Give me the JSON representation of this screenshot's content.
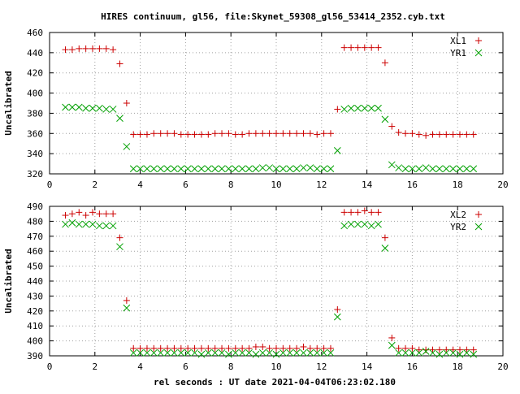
{
  "chart_data": [
    {
      "type": "scatter",
      "title": "HIRES continuum, gl56, file:Skynet_59308_gl56_53414_2352.cyb.txt",
      "xlabel": "",
      "ylabel": "Uncalibrated",
      "xlim": [
        0,
        20
      ],
      "ylim": [
        320,
        460
      ],
      "xticks": [
        0,
        2,
        4,
        6,
        8,
        10,
        12,
        14,
        16,
        18,
        20
      ],
      "yticks": [
        320,
        340,
        360,
        380,
        400,
        420,
        440,
        460
      ],
      "grid": true,
      "legend": "top-right",
      "series": [
        {
          "name": "XL1",
          "marker": "plus",
          "color": "#cc0000",
          "x": [
            0.7,
            1.0,
            1.3,
            1.6,
            1.9,
            2.2,
            2.5,
            2.8,
            3.1,
            3.4,
            3.7,
            4.0,
            4.3,
            4.6,
            4.9,
            5.2,
            5.5,
            5.8,
            6.1,
            6.4,
            6.7,
            7.0,
            7.3,
            7.6,
            7.9,
            8.2,
            8.5,
            8.8,
            9.1,
            9.4,
            9.7,
            10.0,
            10.3,
            10.6,
            10.9,
            11.2,
            11.5,
            11.8,
            12.1,
            12.4,
            12.7,
            13.0,
            13.3,
            13.6,
            13.9,
            14.2,
            14.5,
            14.8,
            15.1,
            15.4,
            15.7,
            16.0,
            16.3,
            16.6,
            16.9,
            17.2,
            17.5,
            17.8,
            18.1,
            18.4,
            18.7
          ],
          "y": [
            443,
            443,
            444,
            444,
            444,
            444,
            444,
            443,
            429,
            390,
            359,
            359,
            359,
            360,
            360,
            360,
            360,
            359,
            359,
            359,
            359,
            359,
            360,
            360,
            360,
            359,
            359,
            360,
            360,
            360,
            360,
            360,
            360,
            360,
            360,
            360,
            360,
            359,
            360,
            360,
            384,
            445,
            445,
            445,
            445,
            445,
            445,
            430,
            367,
            361,
            360,
            360,
            359,
            358,
            359,
            359,
            359,
            359,
            359,
            359,
            359
          ]
        },
        {
          "name": "YR1",
          "marker": "cross",
          "color": "#00a000",
          "x": [
            0.7,
            1.0,
            1.3,
            1.6,
            1.9,
            2.2,
            2.5,
            2.8,
            3.1,
            3.4,
            3.7,
            4.0,
            4.3,
            4.6,
            4.9,
            5.2,
            5.5,
            5.8,
            6.1,
            6.4,
            6.7,
            7.0,
            7.3,
            7.6,
            7.9,
            8.2,
            8.5,
            8.8,
            9.1,
            9.4,
            9.7,
            10.0,
            10.3,
            10.6,
            10.9,
            11.2,
            11.5,
            11.8,
            12.1,
            12.4,
            12.7,
            13.0,
            13.3,
            13.6,
            13.9,
            14.2,
            14.5,
            14.8,
            15.1,
            15.4,
            15.7,
            16.0,
            16.3,
            16.6,
            16.9,
            17.2,
            17.5,
            17.8,
            18.1,
            18.4,
            18.7
          ],
          "y": [
            386,
            386,
            386,
            385,
            385,
            385,
            384,
            384,
            375,
            347,
            325,
            325,
            325,
            325,
            325,
            325,
            325,
            325,
            325,
            325,
            325,
            325,
            325,
            325,
            325,
            325,
            325,
            325,
            325,
            326,
            326,
            325,
            325,
            325,
            325,
            326,
            326,
            325,
            325,
            325,
            343,
            384,
            385,
            385,
            385,
            385,
            385,
            374,
            329,
            326,
            325,
            325,
            325,
            326,
            325,
            325,
            325,
            325,
            325,
            325,
            325
          ]
        }
      ]
    },
    {
      "type": "scatter",
      "title": "",
      "xlabel": "rel seconds : UT date 2021-04-04T06:23:02.180",
      "ylabel": "Uncalibrated",
      "xlim": [
        0,
        20
      ],
      "ylim": [
        390,
        490
      ],
      "xticks": [
        0,
        2,
        4,
        6,
        8,
        10,
        12,
        14,
        16,
        18,
        20
      ],
      "yticks": [
        390,
        400,
        410,
        420,
        430,
        440,
        450,
        460,
        470,
        480,
        490
      ],
      "grid": true,
      "legend": "top-right",
      "series": [
        {
          "name": "XL2",
          "marker": "plus",
          "color": "#cc0000",
          "x": [
            0.7,
            1.0,
            1.3,
            1.6,
            1.9,
            2.2,
            2.5,
            2.8,
            3.1,
            3.4,
            3.7,
            4.0,
            4.3,
            4.6,
            4.9,
            5.2,
            5.5,
            5.8,
            6.1,
            6.4,
            6.7,
            7.0,
            7.3,
            7.6,
            7.9,
            8.2,
            8.5,
            8.8,
            9.1,
            9.4,
            9.7,
            10.0,
            10.3,
            10.6,
            10.9,
            11.2,
            11.5,
            11.8,
            12.1,
            12.4,
            12.7,
            13.0,
            13.3,
            13.6,
            13.9,
            14.2,
            14.5,
            14.8,
            15.1,
            15.4,
            15.7,
            16.0,
            16.3,
            16.6,
            16.9,
            17.2,
            17.5,
            17.8,
            18.1,
            18.4,
            18.7
          ],
          "y": [
            484,
            485,
            486,
            484,
            486,
            485,
            485,
            485,
            469,
            427,
            395,
            395,
            395,
            395,
            395,
            395,
            395,
            395,
            395,
            395,
            395,
            395,
            395,
            395,
            395,
            395,
            395,
            395,
            396,
            396,
            395,
            395,
            395,
            395,
            395,
            396,
            395,
            395,
            395,
            395,
            421,
            486,
            486,
            486,
            487,
            486,
            486,
            469,
            402,
            395,
            395,
            395,
            394,
            394,
            394,
            394,
            394,
            394,
            394,
            394,
            394
          ]
        },
        {
          "name": "YR2",
          "marker": "cross",
          "color": "#00a000",
          "x": [
            0.7,
            1.0,
            1.3,
            1.6,
            1.9,
            2.2,
            2.5,
            2.8,
            3.1,
            3.4,
            3.7,
            4.0,
            4.3,
            4.6,
            4.9,
            5.2,
            5.5,
            5.8,
            6.1,
            6.4,
            6.7,
            7.0,
            7.3,
            7.6,
            7.9,
            8.2,
            8.5,
            8.8,
            9.1,
            9.4,
            9.7,
            10.0,
            10.3,
            10.6,
            10.9,
            11.2,
            11.5,
            11.8,
            12.1,
            12.4,
            12.7,
            13.0,
            13.3,
            13.6,
            13.9,
            14.2,
            14.5,
            14.8,
            15.1,
            15.4,
            15.7,
            16.0,
            16.3,
            16.6,
            16.9,
            17.2,
            17.5,
            17.8,
            18.1,
            18.4,
            18.7
          ],
          "y": [
            478,
            479,
            478,
            478,
            478,
            477,
            477,
            477,
            463,
            422,
            392,
            392,
            392,
            392,
            392,
            392,
            392,
            392,
            392,
            392,
            391,
            392,
            392,
            392,
            391,
            392,
            392,
            392,
            391,
            392,
            392,
            391,
            392,
            392,
            392,
            392,
            392,
            392,
            392,
            392,
            416,
            477,
            478,
            478,
            478,
            477,
            478,
            462,
            397,
            392,
            392,
            392,
            392,
            393,
            392,
            391,
            392,
            392,
            391,
            392,
            391
          ]
        }
      ]
    }
  ]
}
